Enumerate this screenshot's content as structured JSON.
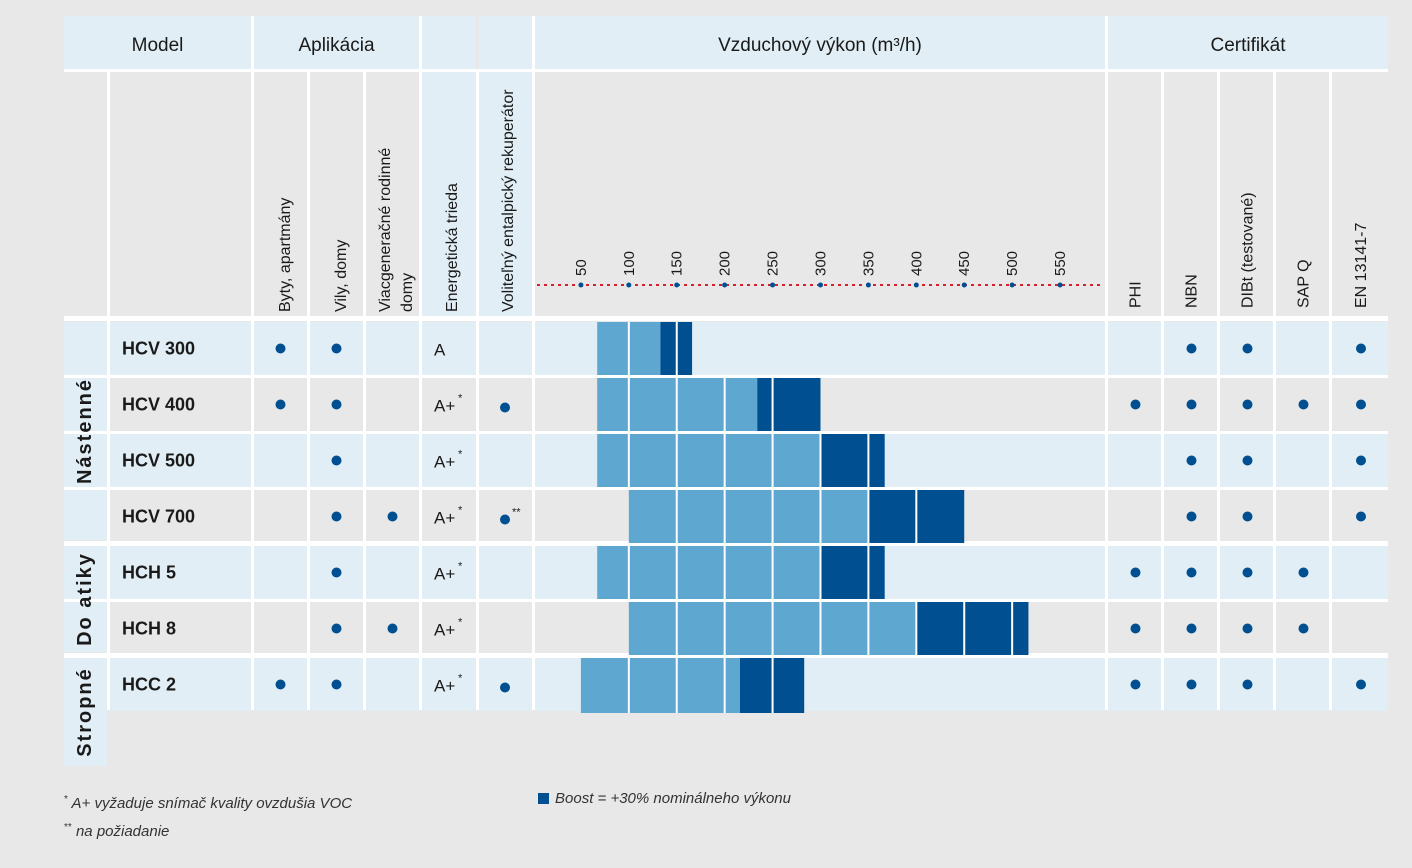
{
  "headers": {
    "model": "Model",
    "application": "Aplikácia",
    "airflow": "Vzduchový výkon (m³/h)",
    "certificate": "Certifikát"
  },
  "sub_headers": {
    "app": [
      "Byty, apartmány",
      "Vily, domy",
      [
        "Viacgeneračné rodinné",
        "domy"
      ]
    ],
    "energy_class": "Energetická trieda",
    "enthalpy": "Voliteľný entalpický rekuperátor",
    "certs": [
      "PHI",
      "NBN",
      "DIBt (testované)",
      "SAP Q",
      "EN 13141-7"
    ]
  },
  "groups": [
    {
      "label": "Nástenné",
      "rows": [
        0,
        3
      ]
    },
    {
      "label": "Do atiky",
      "rows": [
        4,
        5
      ]
    },
    {
      "label": "Stropné",
      "rows": [
        6,
        6
      ]
    }
  ],
  "chart_data": {
    "type": "bar",
    "orientation": "horizontal-range",
    "title": "Vzduchový výkon (m³/h)",
    "xlim": [
      0,
      600
    ],
    "x_ticks": [
      50,
      100,
      150,
      200,
      250,
      300,
      350,
      400,
      450,
      500,
      550
    ],
    "categories": [
      "HCV 300",
      "HCV 400",
      "HCV 500",
      "HCV 700",
      "HCH 5",
      "HCH 8",
      "HCC 2"
    ],
    "series": [
      {
        "name": "nominal",
        "color": "#5ea7d1",
        "ranges": [
          [
            67,
            133
          ],
          [
            67,
            234
          ],
          [
            67,
            300
          ],
          [
            100,
            350
          ],
          [
            67,
            300
          ],
          [
            100,
            400
          ],
          [
            50,
            216
          ]
        ]
      },
      {
        "name": "Boost",
        "color": "#004f91",
        "ranges": [
          [
            133,
            166
          ],
          [
            234,
            300
          ],
          [
            300,
            367
          ],
          [
            350,
            450
          ],
          [
            300,
            367
          ],
          [
            400,
            517
          ],
          [
            216,
            283
          ]
        ]
      }
    ]
  },
  "rows": [
    {
      "model": "HCV 300",
      "app": [
        true,
        true,
        false
      ],
      "energy": "A",
      "energy_star": false,
      "enthalpy": "",
      "certs": [
        false,
        true,
        true,
        false,
        true
      ]
    },
    {
      "model": "HCV 400",
      "app": [
        true,
        true,
        false
      ],
      "energy": "A+",
      "energy_star": true,
      "enthalpy": "dot",
      "certs": [
        true,
        true,
        true,
        true,
        true
      ]
    },
    {
      "model": "HCV 500",
      "app": [
        false,
        true,
        false
      ],
      "energy": "A+",
      "energy_star": true,
      "enthalpy": "",
      "certs": [
        false,
        true,
        true,
        false,
        true
      ]
    },
    {
      "model": "HCV 700",
      "app": [
        false,
        true,
        true
      ],
      "energy": "A+",
      "energy_star": true,
      "enthalpy": "dot-request",
      "certs": [
        false,
        true,
        true,
        false,
        true
      ]
    },
    {
      "model": "HCH 5",
      "app": [
        false,
        true,
        false
      ],
      "energy": "A+",
      "energy_star": true,
      "enthalpy": "",
      "certs": [
        true,
        true,
        true,
        true,
        false
      ]
    },
    {
      "model": "HCH 8",
      "app": [
        false,
        true,
        true
      ],
      "energy": "A+",
      "energy_star": true,
      "enthalpy": "",
      "certs": [
        true,
        true,
        true,
        true,
        false
      ]
    },
    {
      "model": "HCC 2",
      "app": [
        true,
        true,
        false
      ],
      "energy": "A+",
      "energy_star": true,
      "enthalpy": "dot",
      "certs": [
        true,
        true,
        true,
        false,
        true
      ]
    }
  ],
  "marks": {
    "star": "*",
    "double_star": "**"
  },
  "footnotes": {
    "star_mark": "*",
    "star_text": "A+ vyžaduje snímač kvality ovzdušia VOC",
    "dstar_mark": "**",
    "dstar_text": "na požiadanie"
  },
  "legend": {
    "boost_text": "Boost = +30% nominálneho výkonu"
  },
  "colors": {
    "header_bg": "#e1eef5",
    "stripe_bg": "#e1eef5",
    "plain_bg": "#e8e8e8",
    "dot": "#004f91",
    "nominal": "#5ea7d1",
    "boost": "#004f91",
    "dotted_axis": "#d9202a"
  }
}
